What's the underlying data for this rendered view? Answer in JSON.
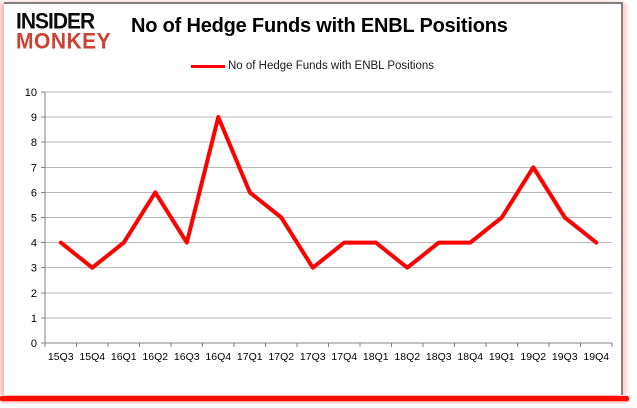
{
  "logo": {
    "line1": "INSIDER",
    "line2": "MONKEY"
  },
  "title": "No of Hedge Funds with ENBL Positions",
  "legend": {
    "label": "No of Hedge Funds with ENBL Positions"
  },
  "colors": {
    "line": "#fe0000",
    "grid": "#b8b8b8",
    "axis": "#808080",
    "logo_red": "#cb4232",
    "bottom_bar": "#fc0d00"
  },
  "chart_data": {
    "type": "line",
    "title": "No of Hedge Funds with ENBL Positions",
    "categories": [
      "15Q3",
      "15Q4",
      "16Q1",
      "16Q2",
      "16Q3",
      "16Q4",
      "17Q1",
      "17Q2",
      "17Q3",
      "17Q4",
      "18Q1",
      "18Q2",
      "18Q3",
      "18Q4",
      "19Q1",
      "19Q2",
      "19Q3",
      "19Q4"
    ],
    "series": [
      {
        "name": "No of Hedge Funds with ENBL Positions",
        "values": [
          4,
          3,
          4,
          6,
          4,
          9,
          6,
          5,
          3,
          4,
          4,
          3,
          4,
          4,
          5,
          7,
          5,
          4
        ]
      }
    ],
    "xlabel": "",
    "ylabel": "",
    "ylim": [
      0,
      10
    ],
    "ytick_step": 1,
    "grid": true,
    "legend_position": "top-center"
  }
}
